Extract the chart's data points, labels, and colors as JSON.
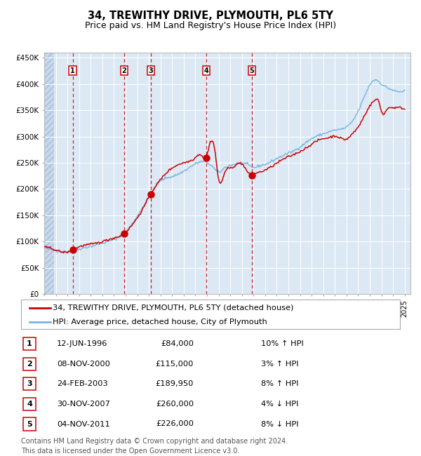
{
  "title": "34, TREWITHY DRIVE, PLYMOUTH, PL6 5TY",
  "subtitle": "Price paid vs. HM Land Registry's House Price Index (HPI)",
  "legend_line1": "34, TREWITHY DRIVE, PLYMOUTH, PL6 5TY (detached house)",
  "legend_line2": "HPI: Average price, detached house, City of Plymouth",
  "footer1": "Contains HM Land Registry data © Crown copyright and database right 2024.",
  "footer2": "This data is licensed under the Open Government Licence v3.0.",
  "transactions": [
    {
      "num": 1,
      "date": "12-JUN-1996",
      "price": 84000,
      "pct": "10%",
      "dir": "↑",
      "x_year": 1996.45
    },
    {
      "num": 2,
      "date": "08-NOV-2000",
      "price": 115000,
      "pct": "3%",
      "dir": "↑",
      "x_year": 2000.86
    },
    {
      "num": 3,
      "date": "24-FEB-2003",
      "price": 189950,
      "pct": "8%",
      "dir": "↑",
      "x_year": 2003.15
    },
    {
      "num": 4,
      "date": "30-NOV-2007",
      "price": 260000,
      "pct": "4%",
      "dir": "↓",
      "x_year": 2007.92
    },
    {
      "num": 5,
      "date": "04-NOV-2011",
      "price": 226000,
      "pct": "8%",
      "dir": "↓",
      "x_year": 2011.84
    }
  ],
  "hpi_color": "#7ab3dd",
  "price_color": "#cc0000",
  "dot_color": "#cc0000",
  "vline_color": "#cc0000",
  "bg_color": "#dce9f5",
  "grid_color": "#ffffff",
  "ylim_max": 460000,
  "xlim_start": 1994.0,
  "xlim_end": 2025.5,
  "ytick_vals": [
    0,
    50000,
    100000,
    150000,
    200000,
    250000,
    300000,
    350000,
    400000,
    450000
  ],
  "ytick_labels": [
    "£0",
    "£50K",
    "£100K",
    "£150K",
    "£200K",
    "£250K",
    "£300K",
    "£350K",
    "£400K",
    "£450K"
  ],
  "hpi_anchors": [
    [
      1994.0,
      88000
    ],
    [
      1995.0,
      83000
    ],
    [
      1996.0,
      81000
    ],
    [
      1997.0,
      86000
    ],
    [
      1998.0,
      91000
    ],
    [
      1999.0,
      97000
    ],
    [
      2000.0,
      104000
    ],
    [
      2001.0,
      118000
    ],
    [
      2002.0,
      148000
    ],
    [
      2003.0,
      185000
    ],
    [
      2004.0,
      215000
    ],
    [
      2005.0,
      224000
    ],
    [
      2006.0,
      234000
    ],
    [
      2007.0,
      248000
    ],
    [
      2007.5,
      252000
    ],
    [
      2008.0,
      250000
    ],
    [
      2008.5,
      242000
    ],
    [
      2009.0,
      232000
    ],
    [
      2009.5,
      240000
    ],
    [
      2010.0,
      245000
    ],
    [
      2010.5,
      248000
    ],
    [
      2011.0,
      250000
    ],
    [
      2011.5,
      246000
    ],
    [
      2012.0,
      241000
    ],
    [
      2012.5,
      244000
    ],
    [
      2013.0,
      247000
    ],
    [
      2014.0,
      258000
    ],
    [
      2015.0,
      268000
    ],
    [
      2016.0,
      280000
    ],
    [
      2017.0,
      296000
    ],
    [
      2018.0,
      305000
    ],
    [
      2019.0,
      312000
    ],
    [
      2020.0,
      318000
    ],
    [
      2021.0,
      348000
    ],
    [
      2022.0,
      398000
    ],
    [
      2022.5,
      408000
    ],
    [
      2023.0,
      400000
    ],
    [
      2023.5,
      393000
    ],
    [
      2024.0,
      388000
    ],
    [
      2024.5,
      385000
    ],
    [
      2025.0,
      388000
    ]
  ],
  "price_anchors": [
    [
      1994.0,
      89000
    ],
    [
      1995.0,
      84000
    ],
    [
      1996.0,
      80000
    ],
    [
      1996.45,
      84000
    ],
    [
      1997.0,
      90000
    ],
    [
      1998.0,
      95000
    ],
    [
      1999.0,
      100000
    ],
    [
      2000.0,
      107000
    ],
    [
      2000.86,
      115000
    ],
    [
      2001.5,
      130000
    ],
    [
      2002.5,
      163000
    ],
    [
      2003.15,
      189950
    ],
    [
      2004.0,
      218000
    ],
    [
      2005.0,
      240000
    ],
    [
      2006.0,
      250000
    ],
    [
      2007.0,
      260000
    ],
    [
      2007.5,
      265000
    ],
    [
      2007.92,
      260000
    ],
    [
      2008.3,
      290000
    ],
    [
      2008.7,
      270000
    ],
    [
      2009.0,
      218000
    ],
    [
      2009.5,
      230000
    ],
    [
      2010.0,
      240000
    ],
    [
      2010.5,
      246000
    ],
    [
      2011.0,
      248000
    ],
    [
      2011.84,
      226000
    ],
    [
      2012.0,
      228000
    ],
    [
      2012.5,
      232000
    ],
    [
      2013.5,
      242000
    ],
    [
      2014.5,
      256000
    ],
    [
      2015.5,
      266000
    ],
    [
      2016.5,
      278000
    ],
    [
      2017.5,
      292000
    ],
    [
      2018.0,
      296000
    ],
    [
      2018.5,
      298000
    ],
    [
      2019.0,
      301000
    ],
    [
      2020.0,
      295000
    ],
    [
      2020.5,
      305000
    ],
    [
      2021.0,
      318000
    ],
    [
      2021.5,
      338000
    ],
    [
      2022.0,
      358000
    ],
    [
      2022.5,
      370000
    ],
    [
      2022.8,
      365000
    ],
    [
      2023.0,
      348000
    ],
    [
      2023.5,
      352000
    ],
    [
      2024.0,
      355000
    ],
    [
      2024.5,
      355000
    ],
    [
      2025.0,
      352000
    ]
  ]
}
